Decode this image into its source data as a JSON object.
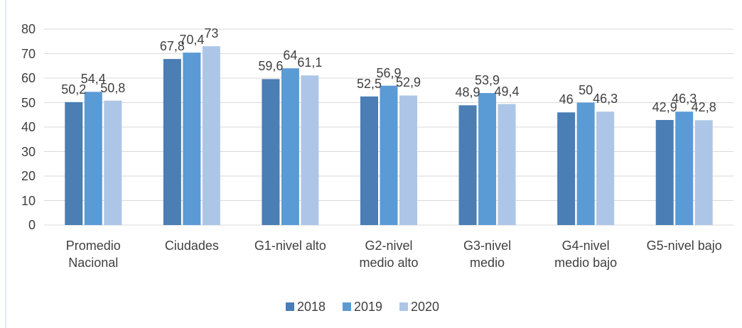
{
  "chart_data": {
    "type": "bar",
    "categories": [
      "Promedio\nNacional",
      "Ciudades",
      "G1-nivel alto",
      "G2-nivel\nmedio alto",
      "G3-nivel\nmedio",
      "G4-nivel\nmedio bajo",
      "G5-nivel bajo"
    ],
    "series": [
      {
        "name": "2018",
        "color": "#4a7eb4",
        "values": [
          50.2,
          67.8,
          59.6,
          52.5,
          48.9,
          46,
          42.9
        ],
        "value_labels": [
          "50,2",
          "67,8",
          "59,6",
          "52,5",
          "48,9",
          "46",
          "42,9"
        ]
      },
      {
        "name": "2019",
        "color": "#5b9bd5",
        "values": [
          54.4,
          70.4,
          64,
          56.9,
          53.9,
          50,
          46.3
        ],
        "value_labels": [
          "54,4",
          "70,4",
          "64",
          "56,9",
          "53,9",
          "50",
          "46,3"
        ]
      },
      {
        "name": "2020",
        "color": "#adc6e7",
        "values": [
          50.8,
          73,
          61.1,
          52.9,
          49.4,
          46.3,
          42.8
        ],
        "value_labels": [
          "50,8",
          "73",
          "61,1",
          "52,9",
          "49,4",
          "46,3",
          "42,8"
        ]
      }
    ],
    "ylim": [
      0,
      80
    ],
    "yticks": [
      0,
      10,
      20,
      30,
      40,
      50,
      60,
      70,
      80
    ],
    "grid": true,
    "legend": "bottom"
  }
}
